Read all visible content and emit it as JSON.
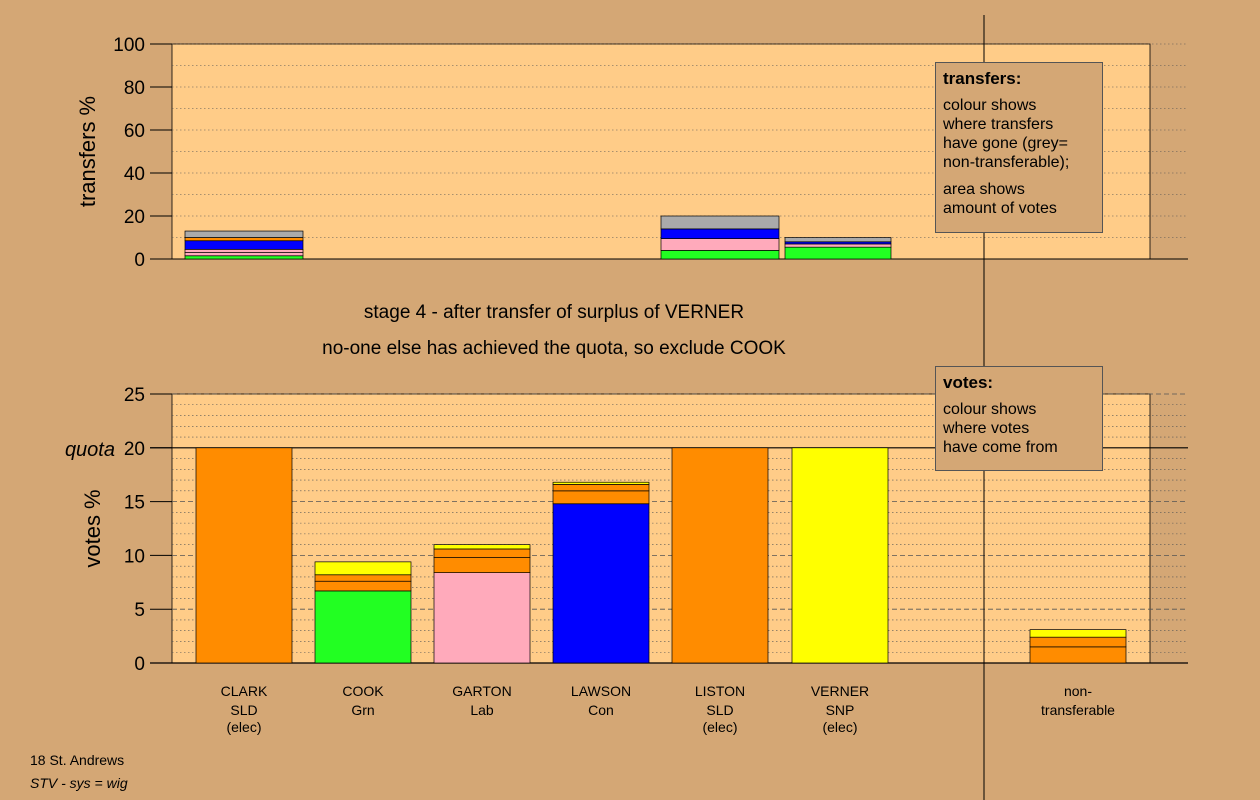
{
  "chart_data": [
    {
      "type": "bar",
      "name": "transfers",
      "ylabel": "transfers %",
      "ylim": [
        0,
        100
      ],
      "yticks": [
        0,
        20,
        40,
        60,
        80,
        100
      ],
      "grid": true,
      "categories": [
        "CLARK",
        "COOK",
        "GARTON",
        "LAWSON",
        "LISTON",
        "VERNER"
      ],
      "stacks": [
        [
          {
            "v": 1.5,
            "c": "#22ff22"
          },
          {
            "v": 1.5,
            "c": "#ffaabb"
          },
          {
            "v": 1.5,
            "c": "#ffaabb"
          },
          {
            "v": 4,
            "c": "#0000ff"
          },
          {
            "v": 1.5,
            "c": "#ff8c00"
          },
          {
            "v": 3,
            "c": "#aaaaaa"
          }
        ],
        [],
        [],
        [],
        [
          {
            "v": 4,
            "c": "#22ff22"
          },
          {
            "v": 5.5,
            "c": "#ffaabb"
          },
          {
            "v": 4.5,
            "c": "#0000ff"
          },
          {
            "v": 6,
            "c": "#aaaaaa"
          }
        ],
        [
          {
            "v": 5.5,
            "c": "#22ff22"
          },
          {
            "v": 1.5,
            "c": "#ffaabb"
          },
          {
            "v": 1,
            "c": "#0000ff"
          },
          {
            "v": 2,
            "c": "#aaaaaa"
          }
        ]
      ]
    },
    {
      "type": "bar",
      "name": "votes",
      "ylabel": "votes %",
      "ylim": [
        0,
        25
      ],
      "yticks": [
        0,
        5,
        10,
        15,
        20,
        25
      ],
      "quota": 20,
      "quota_label": "quota",
      "grid": true,
      "categories": [
        "CLARK",
        "COOK",
        "GARTON",
        "LAWSON",
        "LISTON",
        "VERNER",
        "non-transferable"
      ],
      "stacks": [
        [
          {
            "v": 20,
            "c": "#ff8c00"
          }
        ],
        [
          {
            "v": 6.7,
            "c": "#22ff22"
          },
          {
            "v": 0.9,
            "c": "#ff8c00"
          },
          {
            "v": 0.6,
            "c": "#ff8c00"
          },
          {
            "v": 1.2,
            "c": "#ffff00"
          }
        ],
        [
          {
            "v": 8.4,
            "c": "#ffaabb"
          },
          {
            "v": 1.4,
            "c": "#ff8c00"
          },
          {
            "v": 0.8,
            "c": "#ff8c00"
          },
          {
            "v": 0.4,
            "c": "#ffff00"
          }
        ],
        [
          {
            "v": 14.8,
            "c": "#0000ff"
          },
          {
            "v": 1.2,
            "c": "#ff8c00"
          },
          {
            "v": 0.6,
            "c": "#ff8c00"
          },
          {
            "v": 0.2,
            "c": "#ffff00"
          }
        ],
        [
          {
            "v": 20,
            "c": "#ff8c00"
          }
        ],
        [
          {
            "v": 20,
            "c": "#ffff00"
          }
        ],
        [
          {
            "v": 1.5,
            "c": "#ff8c00"
          },
          {
            "v": 0.9,
            "c": "#ff8c00"
          },
          {
            "v": 0.7,
            "c": "#ffff00"
          }
        ]
      ]
    }
  ],
  "candidates": [
    {
      "name": "CLARK",
      "party": "SLD",
      "status": "(elec)"
    },
    {
      "name": "COOK",
      "party": "Grn",
      "status": ""
    },
    {
      "name": "GARTON",
      "party": "Lab",
      "status": ""
    },
    {
      "name": "LAWSON",
      "party": "Con",
      "status": ""
    },
    {
      "name": "LISTON",
      "party": "SLD",
      "status": "(elec)"
    },
    {
      "name": "VERNER",
      "party": "SNP",
      "status": "(elec)"
    }
  ],
  "nontransferable_label": [
    "non-",
    "transferable"
  ],
  "stage_text": "stage 4 - after transfer of surplus of VERNER",
  "action_text": "no-one else has achieved the quota, so exclude COOK",
  "legend_transfers": {
    "title": "transfers:",
    "lines1": [
      "colour shows",
      "where transfers",
      "have gone (grey=",
      "non-transferable);"
    ],
    "lines2": [
      "area shows",
      "amount of votes"
    ]
  },
  "legend_votes": {
    "title": "votes:",
    "lines": [
      "colour shows",
      "where votes",
      "have come from"
    ]
  },
  "footer": {
    "line1": "18 St. Andrews",
    "line2": "STV - sys = wig"
  },
  "colors": {
    "background": "#d4a775",
    "plot_bg": "#ffcc88",
    "axis": "#000000"
  }
}
